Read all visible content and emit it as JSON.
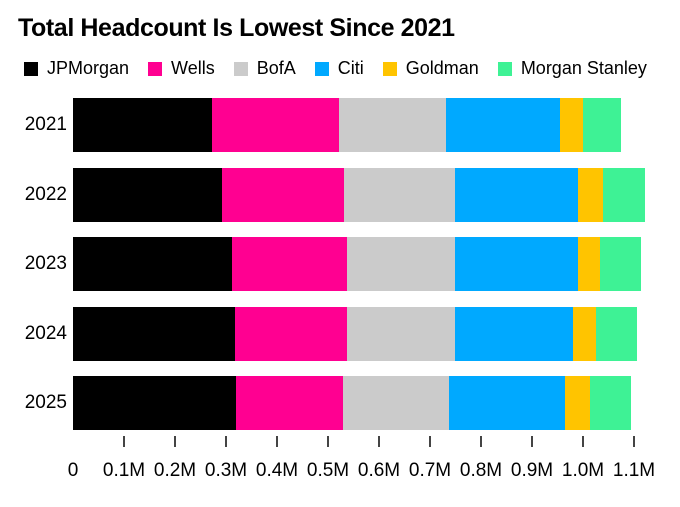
{
  "title": "Total Headcount Is Lowest Since 2021",
  "colors": {
    "background": "#ffffff",
    "text": "#000000",
    "tick": "#444444",
    "jpmorgan": "#000000",
    "wells": "#FF0091",
    "bofa": "#CBCBCB",
    "citi": "#00A9FF",
    "goldman": "#FFC400",
    "morgan_stanley": "#3EF295"
  },
  "legend": [
    {
      "label": "JPMorgan",
      "color": "#000000"
    },
    {
      "label": "Wells",
      "color": "#FF0091"
    },
    {
      "label": "BofA",
      "color": "#CBCBCB"
    },
    {
      "label": "Citi",
      "color": "#00A9FF"
    },
    {
      "label": "Goldman",
      "color": "#FFC400"
    },
    {
      "label": "Morgan Stanley",
      "color": "#3EF295"
    }
  ],
  "chart_data": {
    "type": "bar",
    "orientation": "horizontal",
    "stacked": true,
    "title": "Total Headcount Is Lowest Since 2021",
    "categories": [
      "2021",
      "2022",
      "2023",
      "2024",
      "2025"
    ],
    "series": [
      {
        "name": "JPMorgan",
        "color": "#000000",
        "values": [
          0.272,
          0.292,
          0.311,
          0.317,
          0.319
        ]
      },
      {
        "name": "Wells",
        "color": "#FF0091",
        "values": [
          0.249,
          0.24,
          0.227,
          0.221,
          0.21
        ]
      },
      {
        "name": "BofA",
        "color": "#CBCBCB",
        "values": [
          0.211,
          0.217,
          0.211,
          0.211,
          0.208
        ]
      },
      {
        "name": "Citi",
        "color": "#00A9FF",
        "values": [
          0.222,
          0.242,
          0.241,
          0.231,
          0.228
        ]
      },
      {
        "name": "Goldman",
        "color": "#FFC400",
        "values": [
          0.046,
          0.048,
          0.044,
          0.046,
          0.048
        ]
      },
      {
        "name": "Morgan Stanley",
        "color": "#3EF295",
        "values": [
          0.074,
          0.082,
          0.08,
          0.08,
          0.082
        ]
      }
    ],
    "value_unit": "M",
    "xlabel": "",
    "ylabel": "",
    "xlim": [
      0,
      1.1
    ],
    "x_tick_step": 0.1,
    "x_tick_labels": [
      "0",
      "0.1M",
      "0.2M",
      "0.3M",
      "0.4M",
      "0.5M",
      "0.6M",
      "0.7M",
      "0.8M",
      "0.9M",
      "1.0M",
      "1.1M"
    ],
    "grid": false,
    "legend_position": "top"
  }
}
